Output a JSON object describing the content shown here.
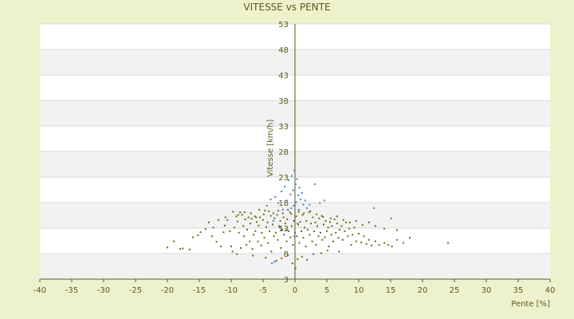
{
  "chart_data": {
    "type": "scatter",
    "title": "VITESSE vs PENTE",
    "xlabel": "Pente [%]",
    "ylabel": "Vitesse [km/h]",
    "xlim": [
      -40,
      40
    ],
    "ylim": [
      3,
      53
    ],
    "xticks": [
      -40,
      -35,
      -30,
      -25,
      -20,
      -15,
      -10,
      -5,
      0,
      5,
      10,
      15,
      20,
      25,
      30,
      35,
      40
    ],
    "yticks": [
      3,
      8,
      13,
      18,
      23,
      28,
      33,
      38,
      43,
      48,
      53
    ],
    "grid": "horizontal bands",
    "series": [
      {
        "color": "#6b6b14",
        "points": [
          [
            -20,
            9.2
          ],
          [
            -19,
            10.4
          ],
          [
            -18,
            8.9
          ],
          [
            -17.6,
            9
          ],
          [
            -16.5,
            8.8
          ],
          [
            -16,
            11.2
          ],
          [
            -15.2,
            11.6
          ],
          [
            -14.8,
            12.2
          ],
          [
            -14,
            12.8
          ],
          [
            -13.5,
            14.1
          ],
          [
            -13,
            11.4
          ],
          [
            -12.8,
            13.1
          ],
          [
            -12.3,
            10.3
          ],
          [
            -11.6,
            9.4
          ],
          [
            -11.2,
            12.2
          ],
          [
            -11,
            13.5
          ],
          [
            -10.6,
            14.6
          ],
          [
            -10.2,
            12.4
          ],
          [
            -10,
            9.4
          ],
          [
            -9.8,
            8.4
          ],
          [
            -9.5,
            13.1
          ],
          [
            -9.2,
            15.3
          ],
          [
            -9,
            14.3
          ],
          [
            -8.8,
            12.1
          ],
          [
            -8.6,
            16.1
          ],
          [
            -8.5,
            9.1
          ],
          [
            -8.3,
            15.6
          ],
          [
            -8.1,
            13.4
          ],
          [
            -8,
            11.4
          ],
          [
            -7.8,
            14.7
          ],
          [
            -7.6,
            9.7
          ],
          [
            -7.5,
            12.7
          ],
          [
            -7.3,
            15.1
          ],
          [
            -7.1,
            10.4
          ],
          [
            -7,
            13.9
          ],
          [
            -6.8,
            14.8
          ],
          [
            -6.7,
            8.9
          ],
          [
            -6.5,
            11.7
          ],
          [
            -6.3,
            15.3
          ],
          [
            -6.2,
            12.4
          ],
          [
            -6,
            14.2
          ],
          [
            -5.8,
            10.4
          ],
          [
            -5.7,
            13.5
          ],
          [
            -5.5,
            15.1
          ],
          [
            -5.3,
            9.6
          ],
          [
            -5.2,
            12.1
          ],
          [
            -5,
            14.6
          ],
          [
            -4.8,
            11.1
          ],
          [
            -4.7,
            16.4
          ],
          [
            -4.5,
            13.2
          ],
          [
            -4.3,
            14.1
          ],
          [
            -4.2,
            10.1
          ],
          [
            -4,
            12.4
          ],
          [
            -3.8,
            15.4
          ],
          [
            -3.7,
            8.4
          ],
          [
            -3.5,
            13.7
          ],
          [
            -3.3,
            11.4
          ],
          [
            -3.2,
            14.9
          ],
          [
            -3,
            12.1
          ],
          [
            -2.8,
            15.6
          ],
          [
            -2.7,
            10.7
          ],
          [
            -2.5,
            13.4
          ],
          [
            -2.3,
            14.4
          ],
          [
            -2.2,
            9.1
          ],
          [
            -2,
            12.7
          ],
          [
            -1.8,
            15.1
          ],
          [
            -1.7,
            11.7
          ],
          [
            -1.5,
            13.9
          ],
          [
            -1.3,
            10.4
          ],
          [
            -1.2,
            14.7
          ],
          [
            -1,
            12.4
          ],
          [
            -0.8,
            16.1
          ],
          [
            -0.7,
            11.2
          ],
          [
            -0.5,
            13.4
          ],
          [
            -0.3,
            9.7
          ],
          [
            -0.2,
            14.4
          ],
          [
            0,
            12.1
          ],
          [
            0.2,
            15.3
          ],
          [
            0.3,
            11.4
          ],
          [
            0.5,
            13.7
          ],
          [
            0.7,
            10.1
          ],
          [
            0.8,
            14.2
          ],
          [
            1,
            12.4
          ],
          [
            1.2,
            15.6
          ],
          [
            1.3,
            11.1
          ],
          [
            1.5,
            13.1
          ],
          [
            1.7,
            9.4
          ],
          [
            1.8,
            14.4
          ],
          [
            2,
            12.7
          ],
          [
            2.2,
            16.1
          ],
          [
            2.3,
            11.7
          ],
          [
            2.5,
            13.9
          ],
          [
            2.7,
            10.4
          ],
          [
            2.8,
            15.1
          ],
          [
            3,
            12.4
          ],
          [
            3.2,
            14.1
          ],
          [
            3.3,
            9.7
          ],
          [
            3.5,
            13.4
          ],
          [
            3.7,
            11.4
          ],
          [
            3.8,
            14.9
          ],
          [
            4,
            12.1
          ],
          [
            4.2,
            15.4
          ],
          [
            4.3,
            10.7
          ],
          [
            4.5,
            13.7
          ],
          [
            4.7,
            11.2
          ],
          [
            4.8,
            14.4
          ],
          [
            5,
            12.4
          ],
          [
            5.2,
            13.1
          ],
          [
            5.3,
            9.4
          ],
          [
            5.5,
            14.2
          ],
          [
            5.7,
            11.7
          ],
          [
            5.8,
            13.4
          ],
          [
            6,
            10.4
          ],
          [
            6.2,
            14.7
          ],
          [
            6.4,
            12.1
          ],
          [
            6.6,
            13.9
          ],
          [
            6.8,
            11.1
          ],
          [
            7,
            12.7
          ],
          [
            7.3,
            13.4
          ],
          [
            7.5,
            10.7
          ],
          [
            7.8,
            12.4
          ],
          [
            8,
            14.1
          ],
          [
            8.3,
            11.4
          ],
          [
            8.5,
            12.9
          ],
          [
            8.8,
            9.7
          ],
          [
            9,
            11.7
          ],
          [
            9.3,
            13.1
          ],
          [
            9.6,
            10.4
          ],
          [
            10,
            11.9
          ],
          [
            10.4,
            10.2
          ],
          [
            10.8,
            11.4
          ],
          [
            11.2,
            9.9
          ],
          [
            11.6,
            10.7
          ],
          [
            12,
            9.6
          ],
          [
            12.6,
            10.4
          ],
          [
            13.2,
            9.7
          ],
          [
            14,
            10.1
          ],
          [
            14.6,
            9.7
          ],
          [
            15.2,
            9.4
          ],
          [
            16,
            10.7
          ],
          [
            17,
            10.1
          ],
          [
            18,
            11.1
          ],
          [
            24,
            10.1
          ],
          [
            -12,
            14.6
          ],
          [
            -10.9,
            15.1
          ],
          [
            -9.7,
            16.2
          ],
          [
            -8.9,
            15.6
          ],
          [
            -7.9,
            16.1
          ],
          [
            -6.9,
            15.9
          ],
          [
            -6.1,
            15.1
          ],
          [
            -5.6,
            16.6
          ],
          [
            -4.9,
            15.7
          ],
          [
            -4.1,
            16.3
          ],
          [
            -3.4,
            15.9
          ],
          [
            -2.6,
            16.4
          ],
          [
            -1.9,
            15.9
          ],
          [
            -1.1,
            16.6
          ],
          [
            -0.6,
            15.8
          ],
          [
            0.6,
            16.2
          ],
          [
            1.4,
            15.9
          ],
          [
            2.4,
            16.3
          ],
          [
            3.4,
            15.7
          ],
          [
            4.4,
            15.2
          ],
          [
            5.6,
            14.9
          ],
          [
            6.6,
            15.3
          ],
          [
            7.6,
            14.6
          ],
          [
            8.6,
            14.1
          ],
          [
            9.6,
            14.4
          ],
          [
            10.6,
            13.6
          ],
          [
            11.6,
            14.1
          ],
          [
            12.6,
            13.4
          ],
          [
            14,
            12.9
          ],
          [
            16,
            12.6
          ],
          [
            -9.1,
            7.9
          ],
          [
            -6.6,
            7.6
          ],
          [
            -4.6,
            7.2
          ],
          [
            -2.9,
            6.6
          ],
          [
            -2.1,
            7.1
          ],
          [
            -1.1,
            7.7
          ],
          [
            -0.4,
            6.1
          ],
          [
            0.1,
            5.1
          ],
          [
            0.4,
            6.9
          ],
          [
            1.1,
            7.4
          ],
          [
            1.9,
            6.8
          ],
          [
            2.9,
            7.9
          ],
          [
            4.1,
            8.1
          ],
          [
            5.1,
            8.6
          ],
          [
            6.9,
            8.4
          ]
        ]
      },
      {
        "color": "#3a86c9",
        "points": [
          [
            -4.4,
            17.4
          ],
          [
            -3.8,
            18.6
          ],
          [
            -3.1,
            19.1
          ],
          [
            -2.6,
            17.9
          ],
          [
            -2.1,
            20.2
          ],
          [
            -1.6,
            21.1
          ],
          [
            -1.3,
            18.4
          ],
          [
            -1,
            22.4
          ],
          [
            -0.7,
            19.6
          ],
          [
            -0.5,
            23.2
          ],
          [
            -0.3,
            20.4
          ],
          [
            -0.1,
            24.3
          ],
          [
            0.1,
            21.6
          ],
          [
            0.3,
            22.6
          ],
          [
            0.5,
            19.4
          ],
          [
            0.7,
            20.9
          ],
          [
            0.9,
            18.6
          ],
          [
            1.1,
            19.9
          ],
          [
            1.3,
            17.6
          ],
          [
            1.6,
            18.4
          ],
          [
            1.9,
            16.9
          ],
          [
            2.3,
            17.6
          ],
          [
            3.1,
            21.6
          ],
          [
            3.9,
            17.9
          ],
          [
            4.6,
            18.4
          ],
          [
            0.2,
            18.1
          ],
          [
            -0.2,
            17.4
          ],
          [
            0.6,
            16.6
          ],
          [
            -0.6,
            16.9
          ],
          [
            -1.9,
            16.6
          ],
          [
            -3.4,
            14.4
          ],
          [
            -2.4,
            13.1
          ],
          [
            -1.4,
            12.6
          ],
          [
            0.4,
            13.9
          ],
          [
            -0.1,
            11.4
          ],
          [
            -3.6,
            6.1
          ],
          [
            -3.2,
            6.4
          ],
          [
            12.4,
            16.9
          ],
          [
            15.1,
            14.9
          ]
        ]
      }
    ]
  }
}
